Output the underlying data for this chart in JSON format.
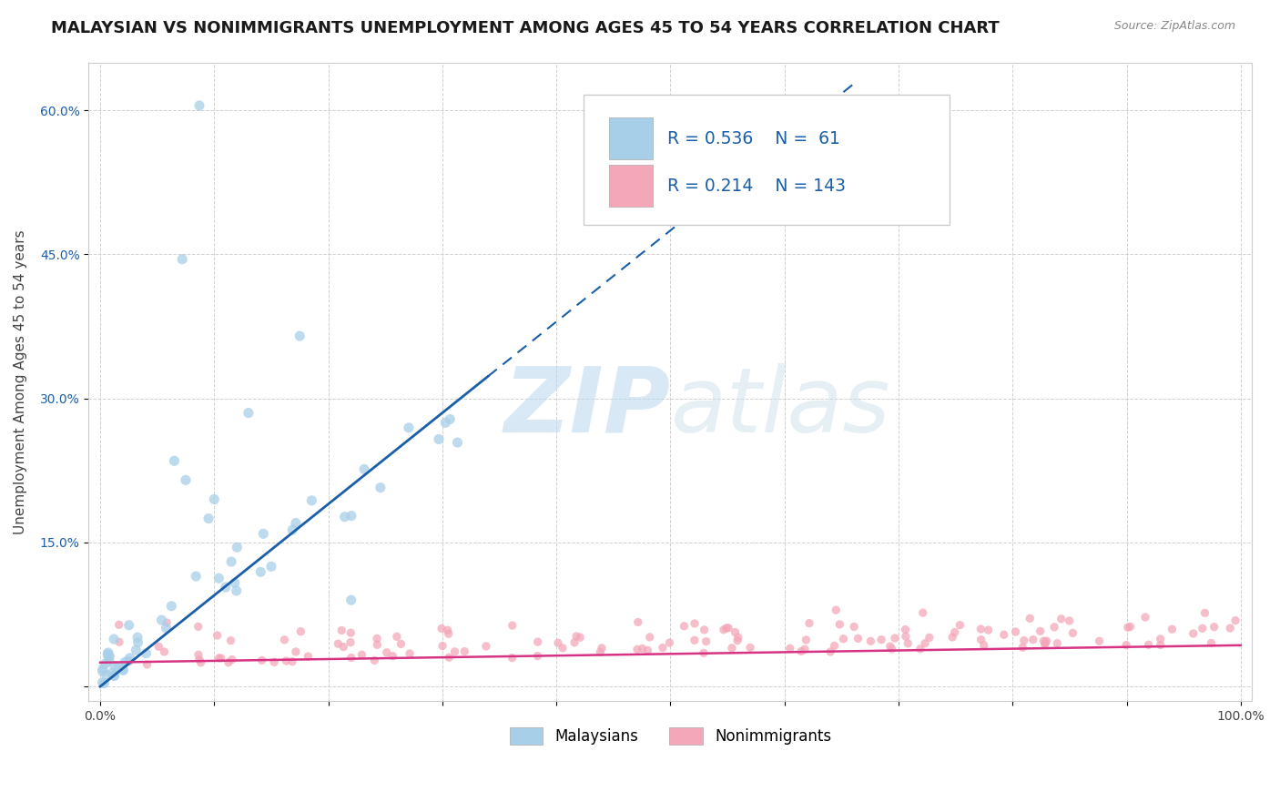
{
  "title": "MALAYSIAN VS NONIMMIGRANTS UNEMPLOYMENT AMONG AGES 45 TO 54 YEARS CORRELATION CHART",
  "source": "Source: ZipAtlas.com",
  "ylabel": "Unemployment Among Ages 45 to 54 years",
  "xlim": [
    -0.01,
    1.01
  ],
  "ylim": [
    -0.015,
    0.65
  ],
  "background_color": "#ffffff",
  "grid_color": "#cccccc",
  "watermark_zip": "ZIP",
  "watermark_atlas": "atlas",
  "malaysians_color": "#a8cfe8",
  "nonimmigrants_color": "#f4a7b9",
  "regression_malaysians_color": "#1a5fa8",
  "regression_nonimmigrants_color": "#d63384",
  "legend_text_color": "#1a5fa8",
  "R_malaysians": 0.536,
  "N_malaysians": 61,
  "R_nonimmigrants": 0.214,
  "N_nonimmigrants": 143,
  "legend_label_malaysians": "Malaysians",
  "legend_label_nonimmigrants": "Nonimmigrants",
  "title_fontsize": 13,
  "axis_fontsize": 11,
  "tick_fontsize": 10,
  "seed_malaysians": 42,
  "seed_nonimmigrants": 99
}
